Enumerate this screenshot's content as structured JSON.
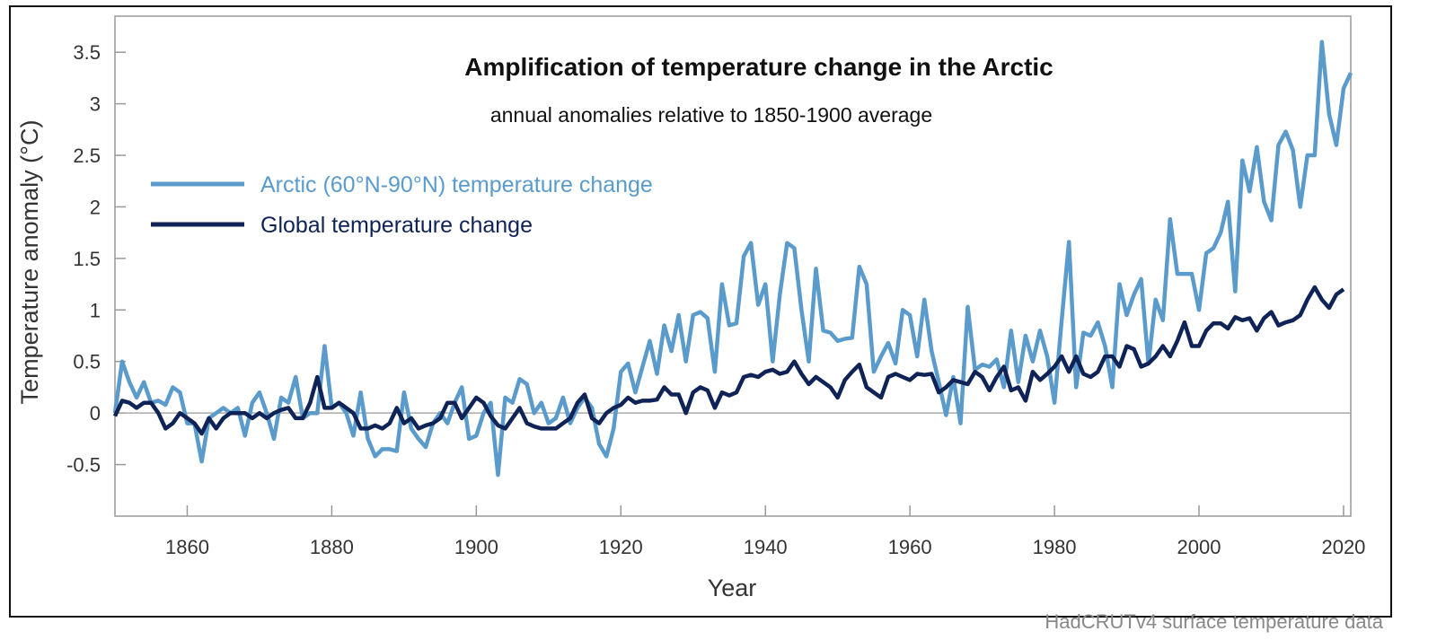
{
  "chart_data": {
    "type": "line",
    "title": "Amplification of temperature change in the Arctic",
    "subtitle": "annual anomalies relative to 1850-1900 average",
    "xlabel": "Year",
    "ylabel": "Temperature anomaly (°C)",
    "source": "HadCRUTv4 surface temperature data",
    "xlim": [
      1850,
      2021
    ],
    "ylim": [
      -1,
      3.85
    ],
    "xticks": [
      "1860",
      "1880",
      "1900",
      "1920",
      "1940",
      "1960",
      "1980",
      "2000",
      "2020"
    ],
    "yticks": [
      "-0.5",
      "0",
      "0.5",
      "1",
      "1.5",
      "2",
      "2.5",
      "3",
      "3.5"
    ],
    "zero_line": true,
    "grid": false,
    "legend_position": "upper-left",
    "x_start": 1850,
    "series": [
      {
        "name": "Arctic (60°N-90°N) temperature change",
        "color": "#5a9bcc",
        "values": [
          0.0,
          0.5,
          0.3,
          0.15,
          0.3,
          0.1,
          0.12,
          0.08,
          0.25,
          0.2,
          -0.1,
          -0.1,
          -0.47,
          -0.05,
          0.0,
          0.05,
          0.0,
          0.05,
          -0.22,
          0.1,
          0.2,
          0.0,
          -0.25,
          0.15,
          0.1,
          0.35,
          -0.05,
          0.0,
          0.0,
          0.65,
          0.05,
          0.1,
          0.0,
          -0.22,
          0.2,
          -0.25,
          -0.42,
          -0.35,
          -0.35,
          -0.37,
          0.2,
          -0.15,
          -0.25,
          -0.33,
          -0.1,
          0.0,
          -0.1,
          0.1,
          0.25,
          -0.25,
          -0.22,
          0.0,
          0.1,
          -0.6,
          0.15,
          0.1,
          0.33,
          0.28,
          0.0,
          0.1,
          -0.1,
          -0.05,
          0.15,
          -0.1,
          0.05,
          0.15,
          0.05,
          -0.3,
          -0.42,
          -0.15,
          0.4,
          0.48,
          0.2,
          0.45,
          0.7,
          0.38,
          0.85,
          0.6,
          0.95,
          0.5,
          0.95,
          0.98,
          0.92,
          0.4,
          1.25,
          0.85,
          0.87,
          1.52,
          1.65,
          1.05,
          1.25,
          0.5,
          1.15,
          1.65,
          1.6,
          1.0,
          0.5,
          1.4,
          0.8,
          0.78,
          0.7,
          0.72,
          0.73,
          1.42,
          1.25,
          0.4,
          0.55,
          0.68,
          0.48,
          1.0,
          0.95,
          0.55,
          1.1,
          0.6,
          0.3,
          -0.02,
          0.35,
          -0.1,
          1.03,
          0.42,
          0.47,
          0.45,
          0.52,
          0.25,
          0.8,
          0.3,
          0.75,
          0.5,
          0.8,
          0.55,
          0.1,
          0.9,
          1.66,
          0.25,
          0.78,
          0.75,
          0.88,
          0.65,
          0.25,
          1.25,
          0.95,
          1.15,
          1.3,
          0.48,
          1.1,
          0.9,
          1.88,
          1.35,
          1.35,
          1.35,
          1.0,
          1.55,
          1.6,
          1.75,
          2.05,
          1.18,
          2.45,
          2.15,
          2.58,
          2.05,
          1.87,
          2.6,
          2.73,
          2.55,
          2.0,
          2.5,
          2.5,
          3.6,
          2.9,
          2.6,
          3.15,
          3.3
        ]
      },
      {
        "name": "Global temperature change",
        "color": "#0f2357",
        "values": [
          -0.03,
          0.12,
          0.1,
          0.05,
          0.1,
          0.1,
          0.0,
          -0.15,
          -0.1,
          0.0,
          -0.05,
          -0.1,
          -0.2,
          -0.05,
          -0.15,
          -0.05,
          0.0,
          0.0,
          0.0,
          -0.05,
          0.0,
          -0.05,
          0.0,
          0.03,
          0.05,
          -0.05,
          -0.05,
          0.1,
          0.35,
          0.05,
          0.05,
          0.1,
          0.05,
          0.0,
          -0.15,
          -0.15,
          -0.12,
          -0.15,
          -0.1,
          0.05,
          -0.1,
          -0.05,
          -0.15,
          -0.12,
          -0.1,
          -0.05,
          0.1,
          0.1,
          -0.05,
          0.05,
          0.15,
          0.1,
          -0.03,
          -0.12,
          -0.15,
          -0.05,
          0.05,
          -0.1,
          -0.13,
          -0.15,
          -0.15,
          -0.15,
          -0.1,
          -0.05,
          0.1,
          0.18,
          -0.05,
          -0.1,
          0.0,
          0.05,
          0.08,
          0.15,
          0.1,
          0.12,
          0.12,
          0.13,
          0.25,
          0.18,
          0.18,
          0.0,
          0.2,
          0.25,
          0.22,
          0.05,
          0.2,
          0.17,
          0.2,
          0.35,
          0.37,
          0.35,
          0.4,
          0.42,
          0.38,
          0.4,
          0.5,
          0.38,
          0.28,
          0.35,
          0.3,
          0.25,
          0.15,
          0.32,
          0.4,
          0.47,
          0.25,
          0.2,
          0.15,
          0.35,
          0.38,
          0.35,
          0.32,
          0.38,
          0.37,
          0.38,
          0.2,
          0.25,
          0.32,
          0.3,
          0.28,
          0.4,
          0.35,
          0.22,
          0.35,
          0.45,
          0.22,
          0.25,
          0.12,
          0.4,
          0.32,
          0.38,
          0.45,
          0.55,
          0.4,
          0.55,
          0.38,
          0.35,
          0.4,
          0.55,
          0.55,
          0.45,
          0.65,
          0.62,
          0.45,
          0.48,
          0.55,
          0.65,
          0.55,
          0.7,
          0.88,
          0.65,
          0.65,
          0.8,
          0.87,
          0.87,
          0.82,
          0.93,
          0.9,
          0.92,
          0.8,
          0.92,
          0.98,
          0.85,
          0.88,
          0.9,
          0.95,
          1.1,
          1.22,
          1.1,
          1.02,
          1.15,
          1.2
        ]
      }
    ]
  }
}
